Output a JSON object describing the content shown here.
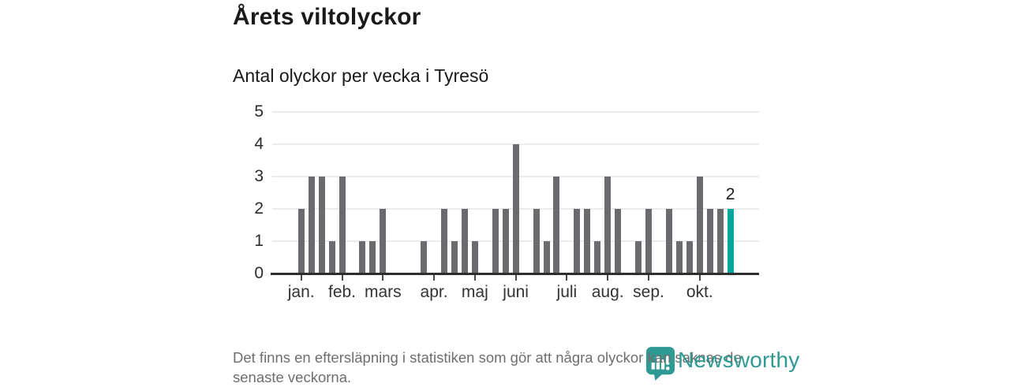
{
  "header": {
    "title": "Årets viltolyckor",
    "subtitle": "Antal olyckor per vecka i Tyresö"
  },
  "chart_data": {
    "type": "bar",
    "title": "Årets viltolyckor",
    "subtitle": "Antal olyckor per vecka i Tyresö",
    "x_unit": "vecka",
    "num_weeks": 43,
    "values": [
      2,
      3,
      3,
      1,
      3,
      0,
      1,
      1,
      2,
      0,
      0,
      0,
      1,
      0,
      2,
      1,
      2,
      1,
      0,
      2,
      2,
      4,
      0,
      2,
      1,
      3,
      0,
      2,
      2,
      1,
      3,
      2,
      0,
      1,
      2,
      0,
      2,
      1,
      1,
      3,
      2,
      2,
      2
    ],
    "highlight_index": 42,
    "highlight_value_label": "2",
    "month_ticks": [
      {
        "label": "jan.",
        "week": 1
      },
      {
        "label": "feb.",
        "week": 5
      },
      {
        "label": "mars",
        "week": 9
      },
      {
        "label": "apr.",
        "week": 14
      },
      {
        "label": "maj",
        "week": 18
      },
      {
        "label": "juni",
        "week": 22
      },
      {
        "label": "juli",
        "week": 27
      },
      {
        "label": "aug.",
        "week": 31
      },
      {
        "label": "sep.",
        "week": 35
      },
      {
        "label": "okt.",
        "week": 40
      }
    ],
    "ylim": [
      0,
      5
    ],
    "yticks": [
      0,
      1,
      2,
      3,
      4,
      5
    ],
    "grid": true,
    "legend": false,
    "bar_color": "#6b6b6f",
    "highlight_color": "#00a79c"
  },
  "footer": {
    "lines": [
      "Det finns en eftersläpning i statistiken som gör att några olyckor kan saknas de",
      "senaste veckorna."
    ]
  },
  "logo": {
    "wordmark": "Newsworthy",
    "color": "#2f9a93",
    "icon": "newsworthy-pin-barchart-icon"
  }
}
